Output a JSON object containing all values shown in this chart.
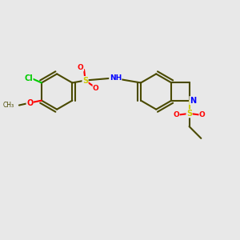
{
  "background_color": "#e8e8e8",
  "figsize": [
    3.0,
    3.0
  ],
  "dpi": 100,
  "bond_color": "#4a4a00",
  "bond_width": 1.5,
  "atom_colors": {
    "Cl": "#00cc00",
    "O": "#ff0000",
    "S": "#cccc00",
    "N": "#0000ff",
    "H": "#888888",
    "C": "#4a4a00"
  }
}
